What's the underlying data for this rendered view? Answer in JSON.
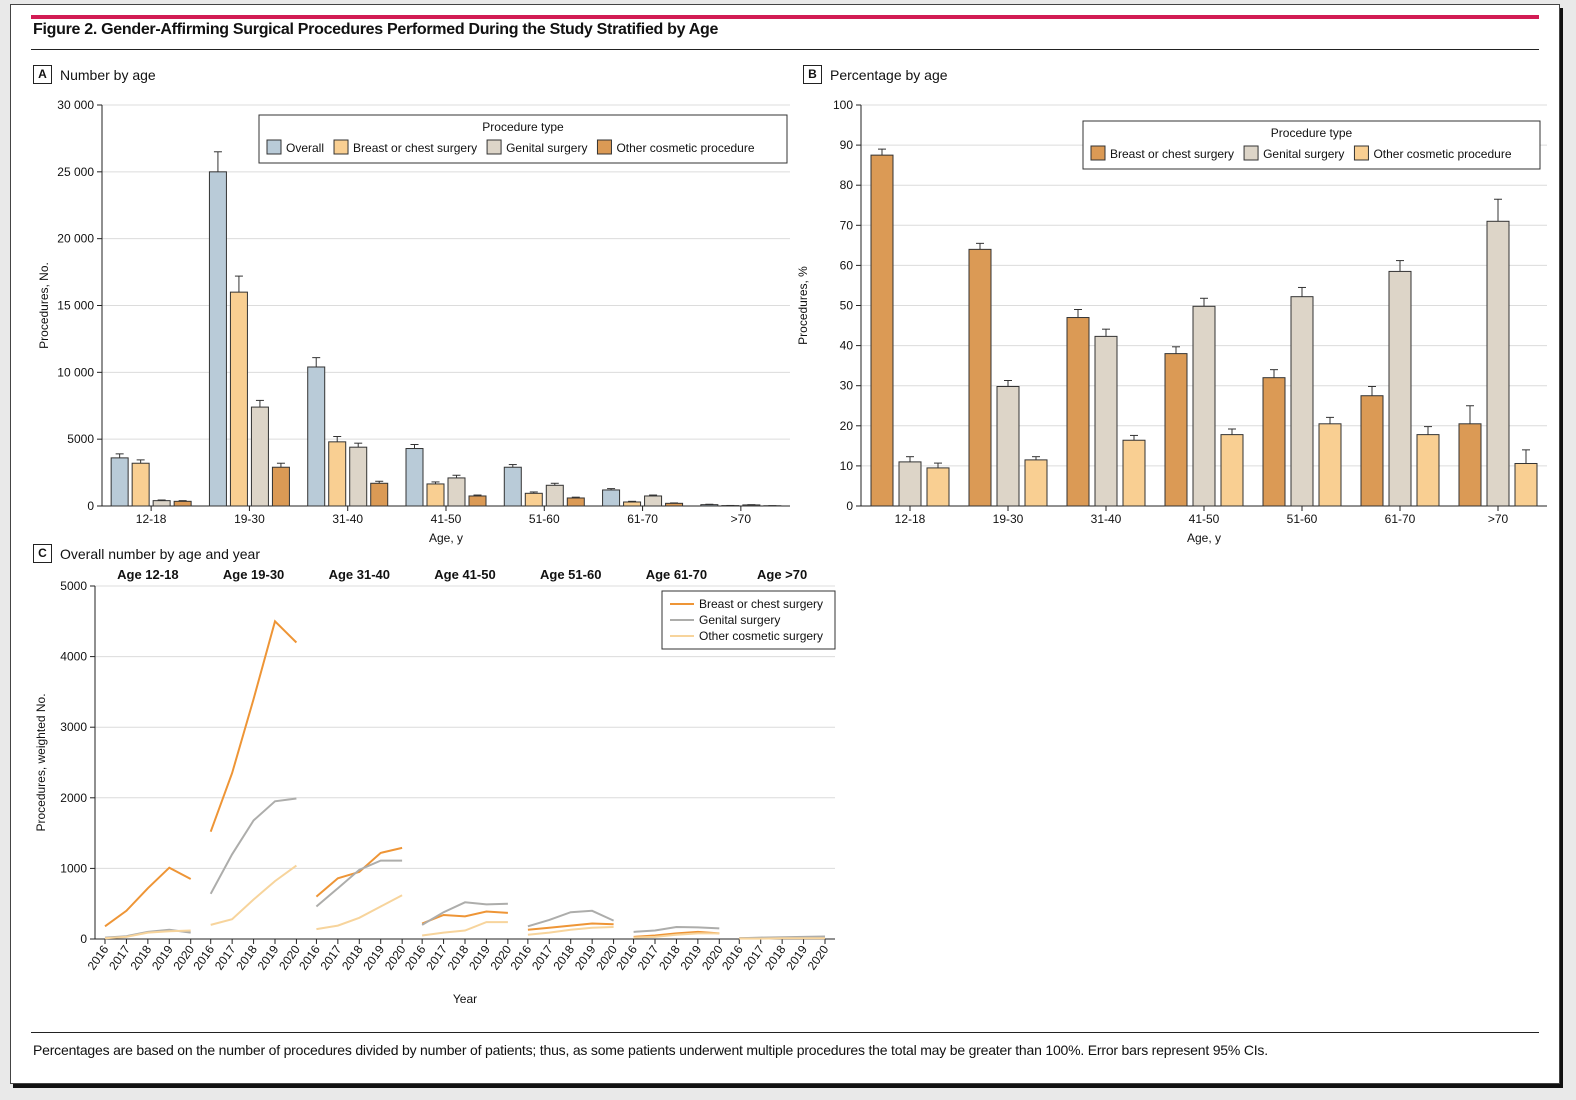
{
  "figure_title": "Figure 2. Gender-Affirming Surgical Procedures Performed During the Study Stratified by Age",
  "footnote": "Percentages are based on the number of procedures divided by number of patients; thus, as some patients underwent multiple procedures the total may be greater than 100%. Error bars represent 95% CIs.",
  "panels": {
    "a": {
      "letter": "A",
      "title": "Number by age"
    },
    "b": {
      "letter": "B",
      "title": "Percentage by age"
    },
    "c": {
      "letter": "C",
      "title": "Overall number by age and year"
    }
  },
  "colors": {
    "overall": "#b9cbd8",
    "breast_a": "#f9cf92",
    "genital": "#ddd5c8",
    "other_a": "#db9a55",
    "breast_b": "#db9a55",
    "other_b": "#f9cf92",
    "line_breast": "#ee9536",
    "line_genital": "#adadab",
    "line_other": "#f7d49c",
    "accent_rule": "#d21c54"
  },
  "chart_data": [
    {
      "id": "A",
      "type": "bar",
      "title": "Number by age",
      "xlabel": "Age, y",
      "ylabel": "Procedures, No.",
      "ylim": [
        0,
        30000
      ],
      "yticks": [
        0,
        5000,
        10000,
        15000,
        20000,
        25000,
        30000
      ],
      "ytick_labels": [
        "0",
        "5000",
        "10 000",
        "15 000",
        "20 000",
        "25 000",
        "30 000"
      ],
      "grid": true,
      "legend_title": "Procedure type",
      "legend_position": "top-right",
      "categories": [
        "12-18",
        "19-30",
        "31-40",
        "41-50",
        "51-60",
        "61-70",
        ">70"
      ],
      "series": [
        {
          "name": "Overall",
          "values": [
            3600,
            25000,
            10400,
            4300,
            2900,
            1200,
            100
          ],
          "upper": [
            3900,
            26500,
            11100,
            4600,
            3100,
            1300,
            130
          ]
        },
        {
          "name": "Breast or chest surgery",
          "values": [
            3200,
            16000,
            4800,
            1650,
            950,
            300,
            30
          ],
          "upper": [
            3450,
            17200,
            5200,
            1800,
            1050,
            350,
            40
          ]
        },
        {
          "name": "Genital surgery",
          "values": [
            400,
            7400,
            4400,
            2100,
            1550,
            750,
            80
          ],
          "upper": [
            450,
            7900,
            4700,
            2300,
            1700,
            820,
            100
          ]
        },
        {
          "name": "Other cosmetic procedure",
          "values": [
            350,
            2900,
            1700,
            750,
            600,
            200,
            20
          ],
          "upper": [
            400,
            3200,
            1850,
            820,
            660,
            230,
            25
          ]
        }
      ]
    },
    {
      "id": "B",
      "type": "bar",
      "title": "Percentage by age",
      "xlabel": "Age, y",
      "ylabel": "Procedures, %",
      "ylim": [
        0,
        100
      ],
      "yticks": [
        0,
        10,
        20,
        30,
        40,
        50,
        60,
        70,
        80,
        90,
        100
      ],
      "grid": true,
      "legend_title": "Procedure type",
      "legend_position": "top-right",
      "categories": [
        "12-18",
        "19-30",
        "31-40",
        "41-50",
        "51-60",
        "61-70",
        ">70"
      ],
      "series": [
        {
          "name": "Breast or chest surgery",
          "values": [
            87.5,
            64,
            47,
            38,
            32,
            27.5,
            20.5
          ],
          "upper": [
            89,
            65.5,
            49,
            39.7,
            34,
            29.8,
            25
          ]
        },
        {
          "name": "Genital surgery",
          "values": [
            11,
            29.8,
            42.3,
            49.8,
            52.2,
            58.5,
            71
          ],
          "upper": [
            12.3,
            31.3,
            44.1,
            51.8,
            54.5,
            61.2,
            76.5
          ]
        },
        {
          "name": "Other cosmetic procedure",
          "values": [
            9.5,
            11.5,
            16.4,
            17.8,
            20.5,
            17.8,
            10.6
          ],
          "upper": [
            10.7,
            12.3,
            17.6,
            19.2,
            22.1,
            19.8,
            14
          ]
        }
      ]
    },
    {
      "id": "C",
      "type": "line",
      "title": "Overall number by age and year",
      "xlabel": "Year",
      "ylabel": "Procedures, weighted No.",
      "ylim": [
        0,
        5000
      ],
      "yticks": [
        0,
        1000,
        2000,
        3000,
        4000,
        5000
      ],
      "ytick_labels": [
        "0",
        "1000",
        "2000",
        "3000",
        "4000",
        "5000"
      ],
      "grid": true,
      "legend_position": "top-right",
      "x": [
        "2016",
        "2017",
        "2018",
        "2019",
        "2020"
      ],
      "groups": [
        "Age 12-18",
        "Age 19-30",
        "Age 31-40",
        "Age 41-50",
        "Age 51-60",
        "Age 61-70",
        "Age >70"
      ],
      "series": [
        {
          "name": "Breast or chest surgery",
          "values": [
            [
              180,
              400,
              720,
              1010,
              850
            ],
            [
              1520,
              2350,
              3400,
              4500,
              4200
            ],
            [
              600,
              860,
              950,
              1220,
              1290
            ],
            [
              220,
              340,
              320,
              390,
              370
            ],
            [
              130,
              160,
              190,
              220,
              210
            ],
            [
              30,
              50,
              80,
              100,
              80
            ],
            [
              10,
              10,
              15,
              20,
              20
            ]
          ]
        },
        {
          "name": "Genital surgery",
          "values": [
            [
              20,
              40,
              100,
              130,
              90
            ],
            [
              640,
              1200,
              1680,
              1950,
              1990
            ],
            [
              460,
              720,
              980,
              1110,
              1110
            ],
            [
              200,
              380,
              520,
              490,
              500
            ],
            [
              180,
              270,
              380,
              400,
              260
            ],
            [
              100,
              120,
              170,
              165,
              150
            ],
            [
              10,
              20,
              25,
              30,
              35
            ]
          ]
        },
        {
          "name": "Other cosmetic surgery",
          "values": [
            [
              10,
              30,
              90,
              110,
              120
            ],
            [
              200,
              280,
              560,
              820,
              1040
            ],
            [
              140,
              190,
              300,
              460,
              620
            ],
            [
              50,
              90,
              120,
              240,
              240
            ],
            [
              60,
              90,
              130,
              160,
              170
            ],
            [
              20,
              30,
              60,
              80,
              80
            ],
            [
              5,
              5,
              10,
              10,
              10
            ]
          ]
        }
      ]
    }
  ]
}
